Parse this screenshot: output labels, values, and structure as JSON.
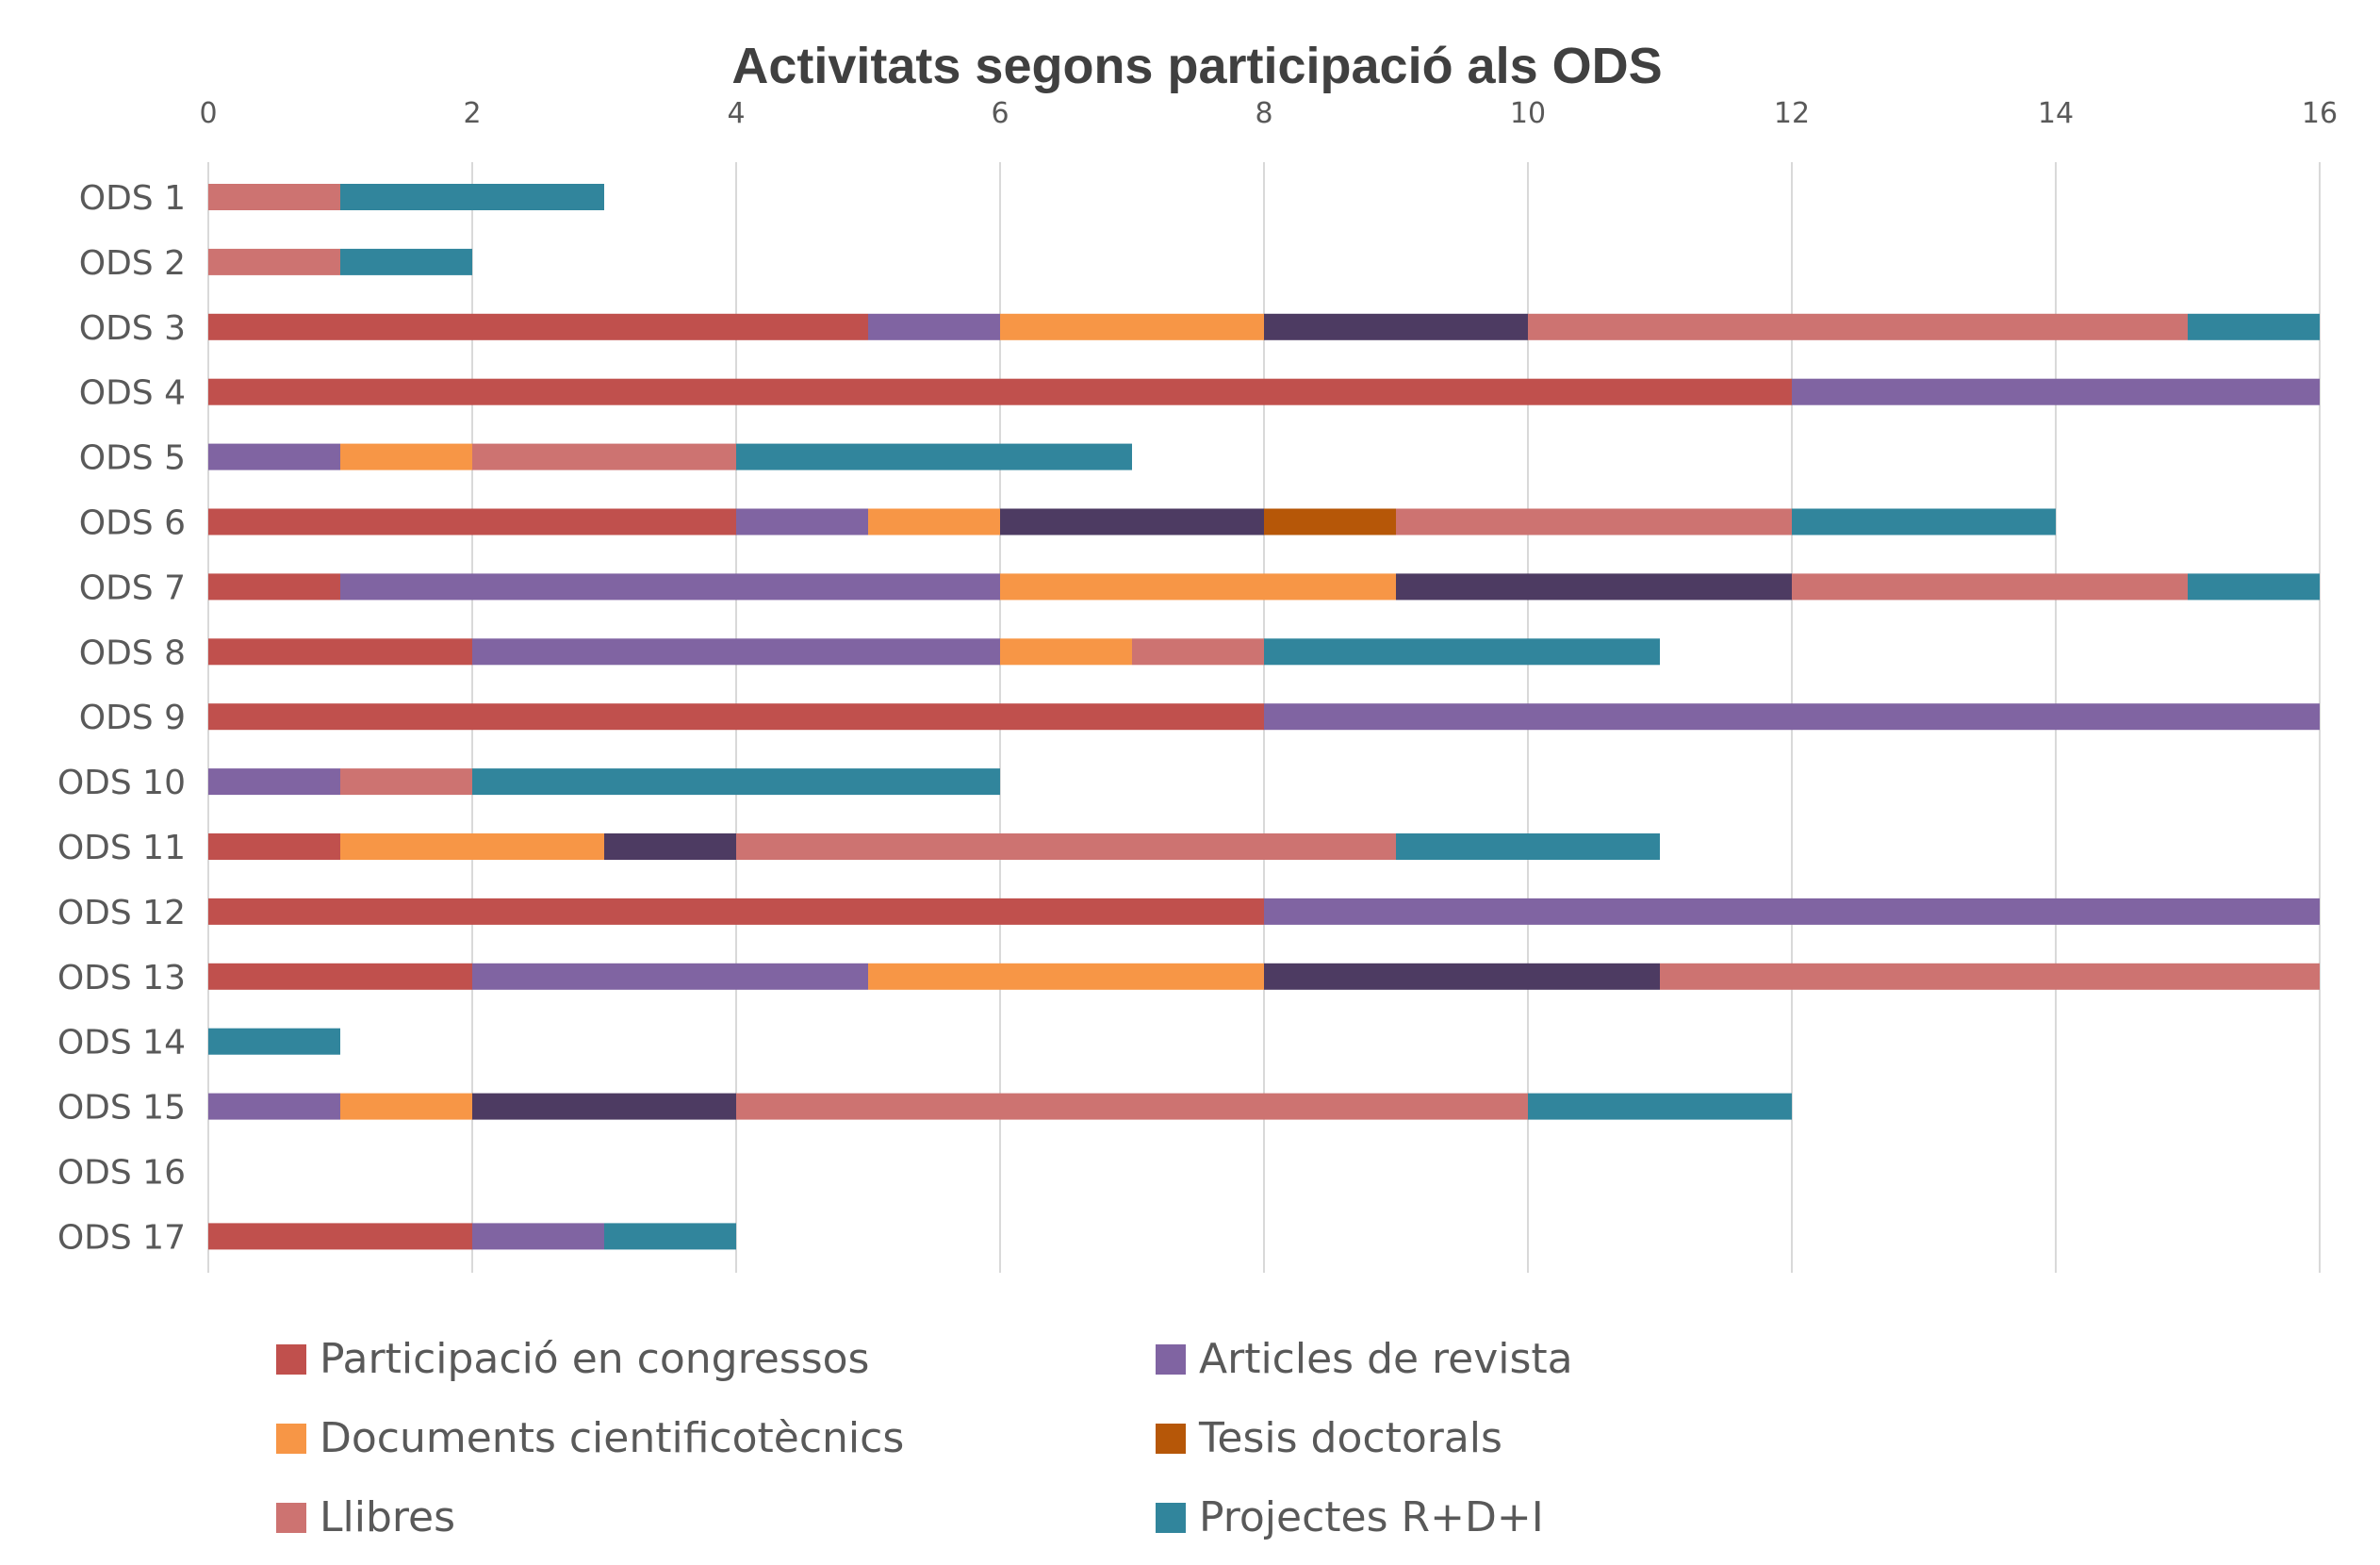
{
  "chart_data": {
    "type": "bar",
    "orientation": "horizontal",
    "stacked": true,
    "title": "Activitats segons participació als ODS",
    "xlabel": "",
    "ylabel": "",
    "xlim": [
      0,
      16
    ],
    "x_ticks": [
      0,
      2,
      4,
      6,
      8,
      10,
      12,
      14,
      16
    ],
    "x_axis_position": "top",
    "grid": true,
    "legend_position": "bottom",
    "categories": [
      "ODS 1",
      "ODS 2",
      "ODS 3",
      "ODS 4",
      "ODS 5",
      "ODS 6",
      "ODS 7",
      "ODS 8",
      "ODS 9",
      "ODS 10",
      "ODS 11",
      "ODS 12",
      "ODS 13",
      "ODS 14",
      "ODS 15",
      "ODS 16",
      "ODS 17"
    ],
    "series": [
      {
        "name": "Participació en congressos",
        "color": "#C0504D",
        "in_legend": true,
        "values": [
          0,
          0,
          5,
          12,
          0,
          4,
          1,
          2,
          8,
          0,
          1,
          8,
          2,
          0,
          0,
          0,
          2
        ]
      },
      {
        "name": "Articles de revista",
        "color": "#8064A2",
        "in_legend": true,
        "values": [
          0,
          0,
          1,
          4,
          1,
          1,
          5,
          4,
          8,
          1,
          0,
          8,
          3,
          0,
          1,
          0,
          1
        ]
      },
      {
        "name": "Documents cientificotècnics",
        "color": "#F79646",
        "in_legend": true,
        "values": [
          0,
          0,
          2,
          0,
          1,
          1,
          3,
          1,
          0,
          0,
          2,
          0,
          3,
          0,
          1,
          0,
          0
        ]
      },
      {
        "name": "",
        "color": "#4D3B62",
        "in_legend": false,
        "values": [
          0,
          0,
          2,
          0,
          0,
          2,
          3,
          0,
          0,
          0,
          1,
          0,
          3,
          0,
          2,
          0,
          0
        ]
      },
      {
        "name": "Tesis doctorals",
        "color": "#B65708",
        "in_legend": true,
        "values": [
          0,
          0,
          0,
          0,
          0,
          1,
          0,
          0,
          0,
          0,
          0,
          0,
          0,
          0,
          0,
          0,
          0
        ]
      },
      {
        "name": "Llibres",
        "color": "#CD7371",
        "in_legend": true,
        "values": [
          1,
          1,
          5,
          0,
          2,
          3,
          3,
          1,
          0,
          1,
          5,
          0,
          5,
          0,
          6,
          0,
          0
        ]
      },
      {
        "name": "Projectes R+D+I",
        "color": "#31859C",
        "in_legend": true,
        "values": [
          2,
          1,
          1,
          0,
          3,
          2,
          1,
          3,
          0,
          4,
          2,
          0,
          0,
          1,
          2,
          0,
          1
        ]
      }
    ],
    "legend": [
      {
        "label": "Participació en congressos",
        "color": "#C0504D"
      },
      {
        "label": "Articles de revista",
        "color": "#8064A2"
      },
      {
        "label": "Documents cientificotècnics",
        "color": "#F79646"
      },
      {
        "label": "Tesis doctorals",
        "color": "#B65708"
      },
      {
        "label": "Llibres",
        "color": "#CD7371"
      },
      {
        "label": "Projectes R+D+I",
        "color": "#31859C"
      }
    ],
    "gridline_color": "#D9D9D9",
    "text_color": "#595959"
  }
}
